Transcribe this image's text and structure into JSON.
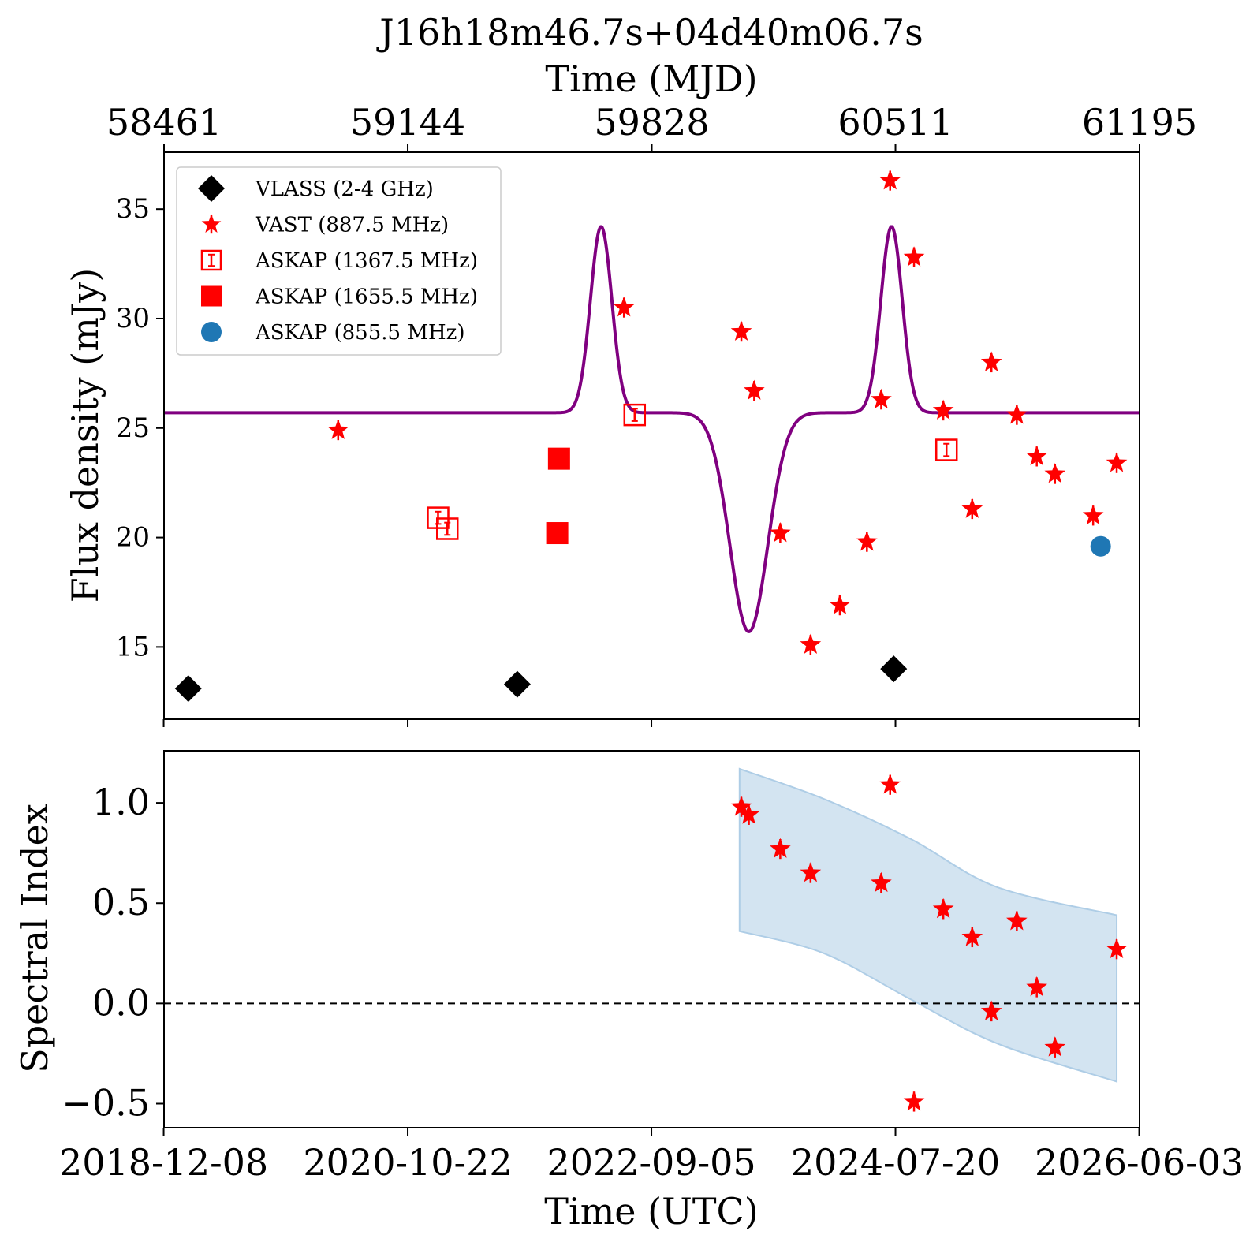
{
  "chart_data": [
    {
      "type": "scatter",
      "title": "J16h18m46.7s+04d40m06.7s",
      "x_top_label": "Time (MJD)",
      "x_top_ticks": [
        "58461",
        "59144",
        "59828",
        "60511",
        "61195"
      ],
      "ylabel": "Flux density (mJy)",
      "ylim": [
        11.7,
        37.6
      ],
      "yticks": [
        "15",
        "20",
        "25",
        "30",
        "35"
      ],
      "xlim_mjd": [
        58461,
        61195
      ],
      "legend_position": "top-left",
      "model_curve": {
        "color": "#800080",
        "baseline": 25.7,
        "components": [
          {
            "amplitude": 8.5,
            "center_mjd": 59686,
            "sigma_days": 30
          },
          {
            "amplitude": -10.0,
            "center_mjd": 60100,
            "sigma_days": 53
          },
          {
            "amplitude": 8.5,
            "center_mjd": 60500,
            "sigma_days": 30
          }
        ]
      },
      "series": [
        {
          "name": "VLASS (2-4 GHz)",
          "marker": "diamond",
          "color": "#000000",
          "points": [
            {
              "x": "2019-02-15",
              "y": 13.1
            },
            {
              "x": "2021-08-25",
              "y": 13.3
            },
            {
              "x": "2024-07-15",
              "y": 14.0
            }
          ]
        },
        {
          "name": "VAST (887.5 MHz)",
          "marker": "star",
          "color": "#ff0000",
          "points": [
            {
              "x": "2020-04-10",
              "y": 24.9
            },
            {
              "x": "2022-06-20",
              "y": 30.5
            },
            {
              "x": "2023-05-15",
              "y": 29.4
            },
            {
              "x": "2023-06-20",
              "y": 26.7
            },
            {
              "x": "2023-09-01",
              "y": 20.2
            },
            {
              "x": "2023-11-25",
              "y": 15.1
            },
            {
              "x": "2024-02-15",
              "y": 16.9
            },
            {
              "x": "2024-05-01",
              "y": 19.8
            },
            {
              "x": "2024-06-10",
              "y": 26.3
            },
            {
              "x": "2024-07-05",
              "y": 36.3
            },
            {
              "x": "2024-09-10",
              "y": 32.8
            },
            {
              "x": "2024-12-01",
              "y": 25.8
            },
            {
              "x": "2025-02-20",
              "y": 21.3
            },
            {
              "x": "2025-04-15",
              "y": 28.0
            },
            {
              "x": "2025-06-25",
              "y": 25.6
            },
            {
              "x": "2025-08-20",
              "y": 23.7
            },
            {
              "x": "2025-10-10",
              "y": 22.9
            },
            {
              "x": "2026-01-25",
              "y": 21.0
            },
            {
              "x": "2026-04-01",
              "y": 23.4
            }
          ]
        },
        {
          "name": "ASKAP (1367.5 MHz)",
          "marker": "square-open",
          "color": "#ff0000",
          "points": [
            {
              "x": "2021-01-15",
              "y": 20.9
            },
            {
              "x": "2021-02-10",
              "y": 20.4
            },
            {
              "x": "2022-07-20",
              "y": 25.6
            },
            {
              "x": "2024-12-10",
              "y": 24.0
            }
          ]
        },
        {
          "name": "ASKAP (1655.5 MHz)",
          "marker": "square",
          "color": "#ff0000",
          "points": [
            {
              "x": "2021-12-20",
              "y": 23.6
            },
            {
              "x": "2021-12-15",
              "y": 20.2
            }
          ]
        },
        {
          "name": "ASKAP (855.5 MHz)",
          "marker": "circle",
          "color": "#1f77b4",
          "points": [
            {
              "x": "2026-02-15",
              "y": 19.6
            }
          ]
        }
      ]
    },
    {
      "type": "scatter",
      "xlabel": "Time (UTC)",
      "ylabel": "Spectral Index",
      "ylim": [
        -0.62,
        1.26
      ],
      "yticks": [
        "−0.5",
        "0.0",
        "0.5",
        "1.0"
      ],
      "xlim_date": [
        "2018-12-08",
        "2026-06-03"
      ],
      "xticks": [
        "2018-12-08",
        "2020-10-22",
        "2022-09-05",
        "2024-07-20",
        "2026-06-03"
      ],
      "reference_line": {
        "y": 0.0,
        "style": "dashed",
        "color": "#000000"
      },
      "band": {
        "color": "#aecde6",
        "upper": [
          {
            "x": "2023-05-10",
            "y": 1.17
          },
          {
            "x": "2024-01-01",
            "y": 1.02
          },
          {
            "x": "2024-09-01",
            "y": 0.82
          },
          {
            "x": "2025-05-01",
            "y": 0.58
          },
          {
            "x": "2026-04-01",
            "y": 0.44
          }
        ],
        "lower": [
          {
            "x": "2023-05-10",
            "y": 0.36
          },
          {
            "x": "2024-01-01",
            "y": 0.25
          },
          {
            "x": "2024-09-01",
            "y": 0.02
          },
          {
            "x": "2025-05-01",
            "y": -0.2
          },
          {
            "x": "2026-04-01",
            "y": -0.39
          }
        ]
      },
      "series": [
        {
          "marker": "star",
          "color": "#ff0000",
          "points": [
            {
              "x": "2023-05-15",
              "y": 0.98
            },
            {
              "x": "2023-06-05",
              "y": 0.94
            },
            {
              "x": "2023-09-01",
              "y": 0.77
            },
            {
              "x": "2023-11-25",
              "y": 0.65
            },
            {
              "x": "2024-06-10",
              "y": 0.6
            },
            {
              "x": "2024-07-05",
              "y": 1.09
            },
            {
              "x": "2024-09-10",
              "y": -0.49
            },
            {
              "x": "2024-12-01",
              "y": 0.47
            },
            {
              "x": "2025-02-20",
              "y": 0.33
            },
            {
              "x": "2025-04-15",
              "y": -0.04
            },
            {
              "x": "2025-06-25",
              "y": 0.41
            },
            {
              "x": "2025-08-20",
              "y": 0.08
            },
            {
              "x": "2025-10-10",
              "y": -0.22
            },
            {
              "x": "2026-04-01",
              "y": 0.27
            }
          ]
        }
      ]
    }
  ]
}
